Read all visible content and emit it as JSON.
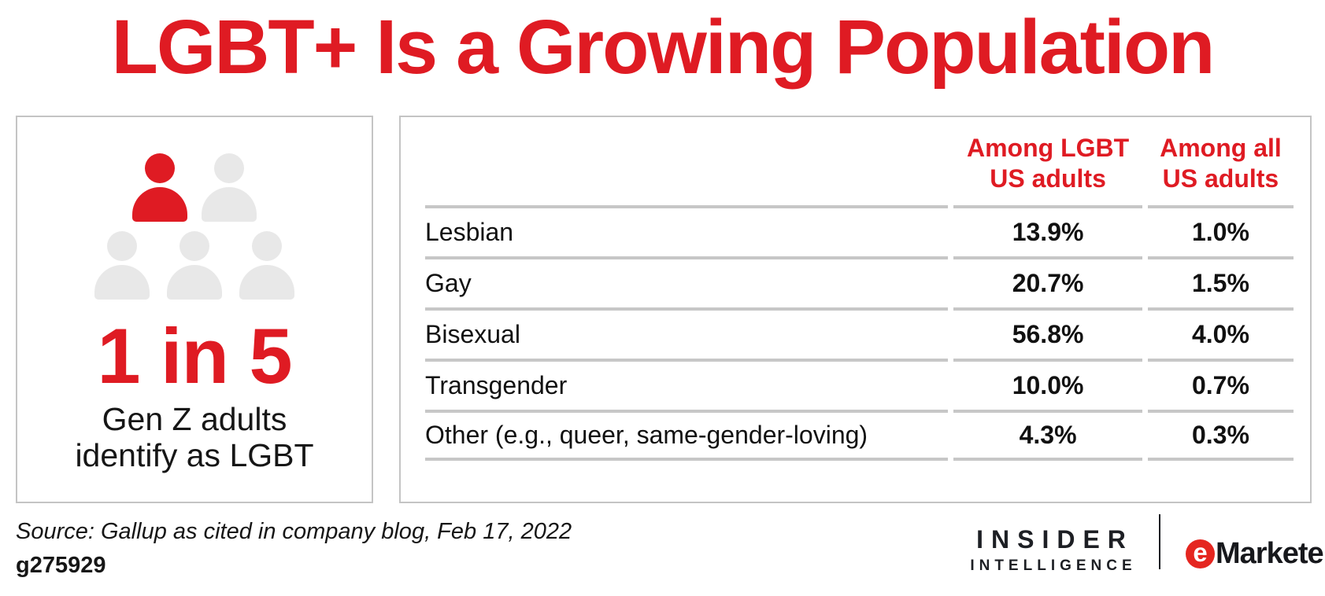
{
  "colors": {
    "accent": "#DF1B23",
    "emarketer_red": "#E52620",
    "person_gray": "#E8E8E8",
    "rule_gray": "#C7C7C7",
    "panel_border": "#C4C4C4"
  },
  "title": "LGBT+ Is a Growing Population",
  "left_panel": {
    "pictogram": {
      "rows": [
        2,
        3
      ],
      "highlighted_count": 1,
      "total_count": 5
    },
    "stat": "1 in 5",
    "caption_line1": "Gen Z adults",
    "caption_line2": "identify as LGBT"
  },
  "table": {
    "col_headers": [
      {
        "line1": "Among LGBT",
        "line2": "US adults"
      },
      {
        "line1": "Among all",
        "line2": "US adults"
      }
    ],
    "rows": [
      {
        "label": "Lesbian",
        "lgbt": "13.9%",
        "all": "1.0%"
      },
      {
        "label": "Gay",
        "lgbt": "20.7%",
        "all": "1.5%"
      },
      {
        "label": "Bisexual",
        "lgbt": "56.8%",
        "all": "4.0%"
      },
      {
        "label": "Transgender",
        "lgbt": "10.0%",
        "all": "0.7%"
      },
      {
        "label": "Other (e.g., queer, same-gender-loving)",
        "lgbt": "4.3%",
        "all": "0.3%"
      }
    ]
  },
  "footer": {
    "source": "Source: Gallup as cited in company blog, Feb 17, 2022",
    "chart_id": "g275929",
    "insider_line1": "INSIDER",
    "insider_line2": "INTELLIGENCE",
    "emarketer_e": "e",
    "emarketer_text": "Marketer",
    "emarketer_reg": "®"
  },
  "chart_data": {
    "type": "table",
    "title": "LGBT+ Is a Growing Population",
    "categories": [
      "Lesbian",
      "Gay",
      "Bisexual",
      "Transgender",
      "Other (e.g., queer, same-gender-loving)"
    ],
    "series": [
      {
        "name": "Among LGBT US adults",
        "values": [
          13.9,
          20.7,
          56.8,
          10.0,
          4.3
        ],
        "unit": "%"
      },
      {
        "name": "Among all US adults",
        "values": [
          1.0,
          1.5,
          4.0,
          0.7,
          0.3
        ],
        "unit": "%"
      }
    ],
    "highlight_stat": {
      "value": "1 in 5",
      "label": "Gen Z adults identify as LGBT",
      "fraction": 0.2
    },
    "source": "Source: Gallup as cited in company blog, Feb 17, 2022",
    "figure_id": "g275929",
    "legend_position": "column-headers",
    "grid": "horizontal-rules"
  }
}
